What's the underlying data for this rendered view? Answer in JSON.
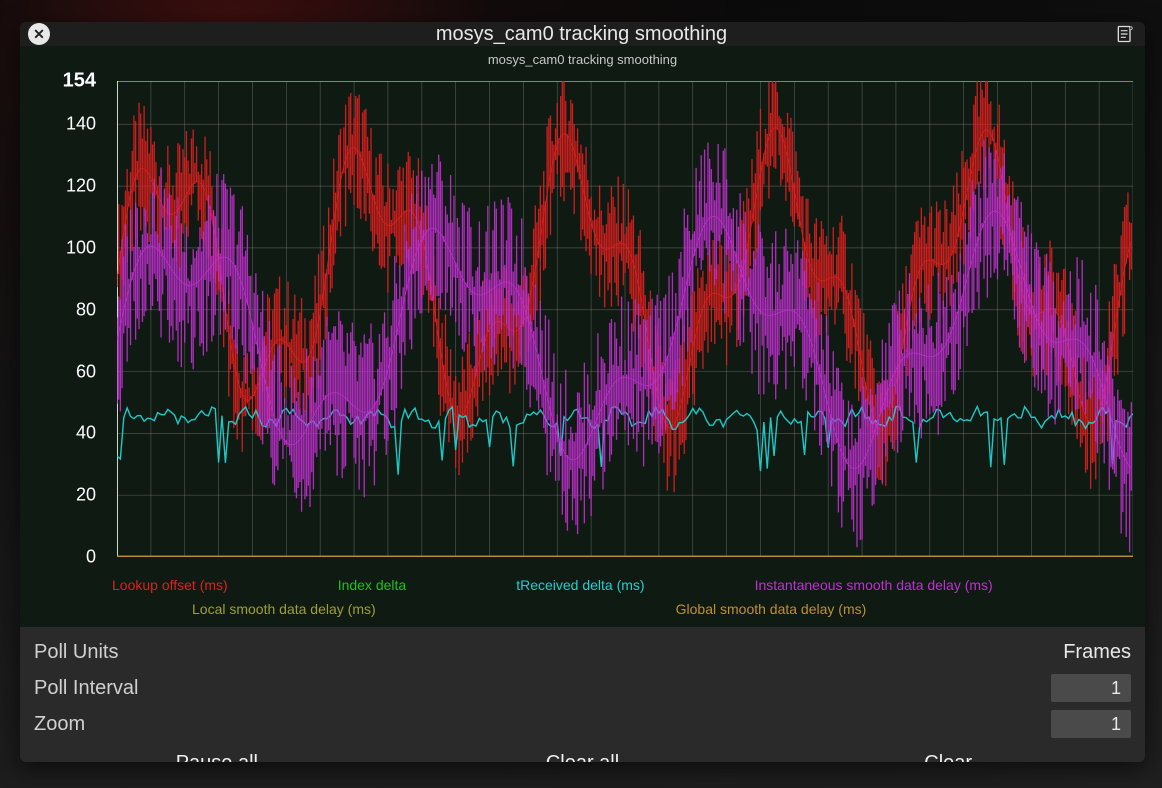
{
  "header": {
    "title": "mosys_cam0 tracking smoothing",
    "subtitle": "mosys_cam0 tracking smoothing"
  },
  "chart": {
    "type": "line",
    "background_color": "#0f1a12",
    "grid_color": "#808080",
    "grid_opacity": 0.55,
    "ylim": [
      0,
      154
    ],
    "ytick_step": 20,
    "ytick_labels": [
      "0",
      "20",
      "40",
      "60",
      "80",
      "100",
      "120",
      "140"
    ],
    "ymax_label": "154",
    "ymax_line_color": "#e0a030",
    "x_samples": 300,
    "x_gridlines": 30,
    "axis_color": "#ffffff",
    "label_fontsize": 18,
    "series": [
      {
        "name": "lookup_offset",
        "label": "Lookup offset (ms)",
        "color": "#e02020",
        "baseline": 90,
        "amplitude": 35,
        "noise": 22,
        "period": 60,
        "opacity": 0.9
      },
      {
        "name": "index_delta",
        "label": "Index delta",
        "color": "#20c020",
        "baseline": 0,
        "amplitude": 0,
        "noise": 0,
        "period": 1,
        "opacity": 1.0
      },
      {
        "name": "treceived_delta",
        "label": "tReceived delta (ms)",
        "color": "#20d0d0",
        "baseline": 45,
        "amplitude": 2,
        "noise": 4,
        "period": 12,
        "opacity": 0.95
      },
      {
        "name": "inst_smooth",
        "label": "Instantaneous smooth data delay (ms)",
        "color": "#c030d0",
        "baseline": 70,
        "amplitude": 30,
        "noise": 28,
        "period": 80,
        "opacity": 0.9
      },
      {
        "name": "local_smooth",
        "label": "Local smooth data delay (ms)",
        "color": "#a0a030",
        "baseline": 0,
        "amplitude": 0,
        "noise": 0,
        "period": 1,
        "opacity": 1.0
      },
      {
        "name": "global_smooth",
        "label": "Global smooth data delay (ms)",
        "color": "#c09030",
        "baseline": 0,
        "amplitude": 0,
        "noise": 0,
        "period": 1,
        "opacity": 1.0
      }
    ],
    "legend_positions": [
      "row1",
      "row1",
      "row1",
      "row1",
      "row2",
      "row2"
    ]
  },
  "controls": {
    "poll_units": {
      "label": "Poll Units",
      "value": "Frames"
    },
    "poll_interval": {
      "label": "Poll Interval",
      "value": "1"
    },
    "zoom": {
      "label": "Zoom",
      "value": "1"
    }
  },
  "buttons": {
    "pause_all": "Pause all",
    "clear_all": "Clear all",
    "clear": "Clear"
  },
  "colors": {
    "panel_bg": "#1e1e1e",
    "controls_bg": "#2a2a2a",
    "input_bg": "#4a4a4a",
    "text": "#e8e8e8",
    "text_dim": "#d0d0d0"
  }
}
